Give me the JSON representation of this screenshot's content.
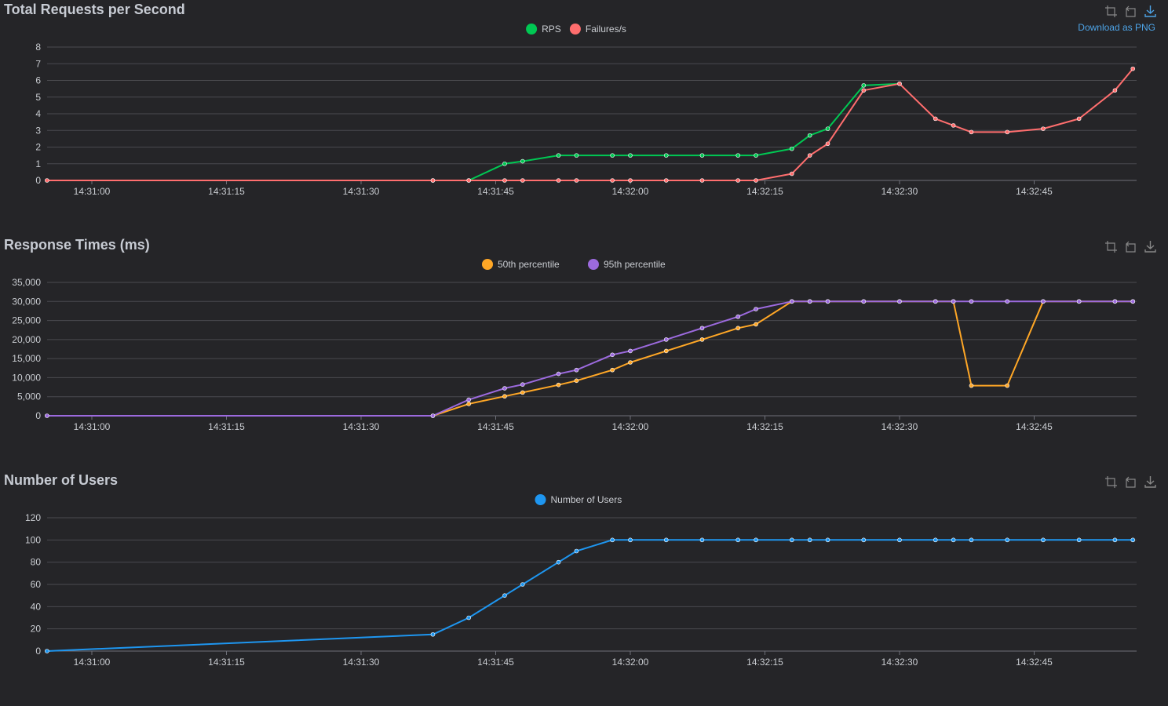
{
  "x_ticks": [
    "14:31:00",
    "14:31:15",
    "14:31:30",
    "14:31:45",
    "14:32:00",
    "14:32:15",
    "14:32:30",
    "14:32:45"
  ],
  "toolbox": {
    "download_label": "Download as PNG",
    "icons": [
      "zoom-icon",
      "restore-icon",
      "download-icon"
    ]
  },
  "chart_data": [
    {
      "type": "line",
      "title": "Total Requests per Second",
      "ylim": [
        0,
        8
      ],
      "y_ticks": [
        "0",
        "1",
        "2",
        "3",
        "4",
        "5",
        "6",
        "7",
        "8"
      ],
      "x_ticks": [
        "14:31:00",
        "14:31:15",
        "14:31:30",
        "14:31:45",
        "14:32:00",
        "14:32:15",
        "14:32:30",
        "14:32:45"
      ],
      "legend_position": "top-center",
      "grid": true,
      "series": [
        {
          "name": "RPS",
          "color": "#00c853",
          "points": [
            [
              "14:31:38",
              0
            ],
            [
              "14:31:42",
              0
            ],
            [
              "14:31:46",
              1.0
            ],
            [
              "14:31:48",
              1.15
            ],
            [
              "14:31:52",
              1.5
            ],
            [
              "14:31:54",
              1.5
            ],
            [
              "14:31:58",
              1.5
            ],
            [
              "14:32:00",
              1.5
            ],
            [
              "14:32:04",
              1.5
            ],
            [
              "14:32:08",
              1.5
            ],
            [
              "14:32:12",
              1.5
            ],
            [
              "14:32:14",
              1.5
            ],
            [
              "14:32:18",
              1.9
            ],
            [
              "14:32:20",
              2.7
            ],
            [
              "14:32:22",
              3.1
            ],
            [
              "14:32:26",
              5.7
            ],
            [
              "14:32:30",
              5.8
            ]
          ]
        },
        {
          "name": "Failures/s",
          "color": "#ff6e6e",
          "points": [
            [
              "14:30:55",
              0
            ],
            [
              "14:31:38",
              0
            ],
            [
              "14:31:42",
              0
            ],
            [
              "14:31:46",
              0
            ],
            [
              "14:31:48",
              0
            ],
            [
              "14:31:52",
              0
            ],
            [
              "14:31:54",
              0
            ],
            [
              "14:31:58",
              0
            ],
            [
              "14:32:00",
              0
            ],
            [
              "14:32:04",
              0
            ],
            [
              "14:32:08",
              0
            ],
            [
              "14:32:12",
              0
            ],
            [
              "14:32:14",
              0
            ],
            [
              "14:32:18",
              0.4
            ],
            [
              "14:32:20",
              1.5
            ],
            [
              "14:32:22",
              2.2
            ],
            [
              "14:32:26",
              5.4
            ],
            [
              "14:32:30",
              5.8
            ],
            [
              "14:32:34",
              3.7
            ],
            [
              "14:32:36",
              3.3
            ],
            [
              "14:32:38",
              2.9
            ],
            [
              "14:32:42",
              2.9
            ],
            [
              "14:32:46",
              3.1
            ],
            [
              "14:32:50",
              3.7
            ],
            [
              "14:32:54",
              5.4
            ],
            [
              "14:32:56",
              6.7
            ]
          ]
        }
      ]
    },
    {
      "type": "line",
      "title": "Response Times (ms)",
      "ylim": [
        0,
        35000
      ],
      "y_ticks": [
        "0",
        "5,000",
        "10,000",
        "15,000",
        "20,000",
        "25,000",
        "30,000",
        "35,000"
      ],
      "x_ticks": [
        "14:31:00",
        "14:31:15",
        "14:31:30",
        "14:31:45",
        "14:32:00",
        "14:32:15",
        "14:32:30",
        "14:32:45"
      ],
      "legend_position": "top-center",
      "grid": true,
      "series": [
        {
          "name": "50th percentile",
          "color": "#ffa726",
          "points": [
            [
              "14:31:38",
              0
            ],
            [
              "14:31:42",
              3100
            ],
            [
              "14:31:46",
              5100
            ],
            [
              "14:31:48",
              6100
            ],
            [
              "14:31:52",
              8100
            ],
            [
              "14:31:54",
              9200
            ],
            [
              "14:31:58",
              12000
            ],
            [
              "14:32:00",
              14000
            ],
            [
              "14:32:04",
              17000
            ],
            [
              "14:32:08",
              20000
            ],
            [
              "14:32:12",
              23000
            ],
            [
              "14:32:14",
              24000
            ],
            [
              "14:32:18",
              30000
            ],
            [
              "14:32:20",
              30000
            ],
            [
              "14:32:22",
              30000
            ],
            [
              "14:32:26",
              30000
            ],
            [
              "14:32:30",
              30000
            ],
            [
              "14:32:34",
              30000
            ],
            [
              "14:32:36",
              30000
            ],
            [
              "14:32:38",
              7900
            ],
            [
              "14:32:42",
              7900
            ],
            [
              "14:32:46",
              30000
            ],
            [
              "14:32:50",
              30000
            ],
            [
              "14:32:54",
              30000
            ],
            [
              "14:32:56",
              30000
            ]
          ]
        },
        {
          "name": "95th percentile",
          "color": "#9c6ade",
          "points": [
            [
              "14:30:55",
              0
            ],
            [
              "14:31:38",
              0
            ],
            [
              "14:31:42",
              4200
            ],
            [
              "14:31:46",
              7200
            ],
            [
              "14:31:48",
              8200
            ],
            [
              "14:31:52",
              11000
            ],
            [
              "14:31:54",
              12000
            ],
            [
              "14:31:58",
              16000
            ],
            [
              "14:32:00",
              17000
            ],
            [
              "14:32:04",
              20000
            ],
            [
              "14:32:08",
              23000
            ],
            [
              "14:32:12",
              26000
            ],
            [
              "14:32:14",
              28000
            ],
            [
              "14:32:18",
              30000
            ],
            [
              "14:32:20",
              30000
            ],
            [
              "14:32:22",
              30000
            ],
            [
              "14:32:26",
              30000
            ],
            [
              "14:32:30",
              30000
            ],
            [
              "14:32:34",
              30000
            ],
            [
              "14:32:36",
              30000
            ],
            [
              "14:32:38",
              30000
            ],
            [
              "14:32:42",
              30000
            ],
            [
              "14:32:46",
              30000
            ],
            [
              "14:32:50",
              30000
            ],
            [
              "14:32:54",
              30000
            ],
            [
              "14:32:56",
              30000
            ]
          ]
        }
      ]
    },
    {
      "type": "line",
      "title": "Number of Users",
      "ylim": [
        0,
        120
      ],
      "y_ticks": [
        "0",
        "20",
        "40",
        "60",
        "80",
        "100",
        "120"
      ],
      "x_ticks": [
        "14:31:00",
        "14:31:15",
        "14:31:30",
        "14:31:45",
        "14:32:00",
        "14:32:15",
        "14:32:30",
        "14:32:45"
      ],
      "legend_position": "top-center",
      "grid": true,
      "series": [
        {
          "name": "Number of Users",
          "color": "#1e96f0",
          "points": [
            [
              "14:30:55",
              0
            ],
            [
              "14:31:38",
              15
            ],
            [
              "14:31:42",
              30
            ],
            [
              "14:31:46",
              50
            ],
            [
              "14:31:48",
              60
            ],
            [
              "14:31:52",
              80
            ],
            [
              "14:31:54",
              90
            ],
            [
              "14:31:58",
              100
            ],
            [
              "14:32:00",
              100
            ],
            [
              "14:32:04",
              100
            ],
            [
              "14:32:08",
              100
            ],
            [
              "14:32:12",
              100
            ],
            [
              "14:32:14",
              100
            ],
            [
              "14:32:18",
              100
            ],
            [
              "14:32:20",
              100
            ],
            [
              "14:32:22",
              100
            ],
            [
              "14:32:26",
              100
            ],
            [
              "14:32:30",
              100
            ],
            [
              "14:32:34",
              100
            ],
            [
              "14:32:36",
              100
            ],
            [
              "14:32:38",
              100
            ],
            [
              "14:32:42",
              100
            ],
            [
              "14:32:46",
              100
            ],
            [
              "14:32:50",
              100
            ],
            [
              "14:32:54",
              100
            ],
            [
              "14:32:56",
              100
            ]
          ]
        }
      ]
    }
  ]
}
